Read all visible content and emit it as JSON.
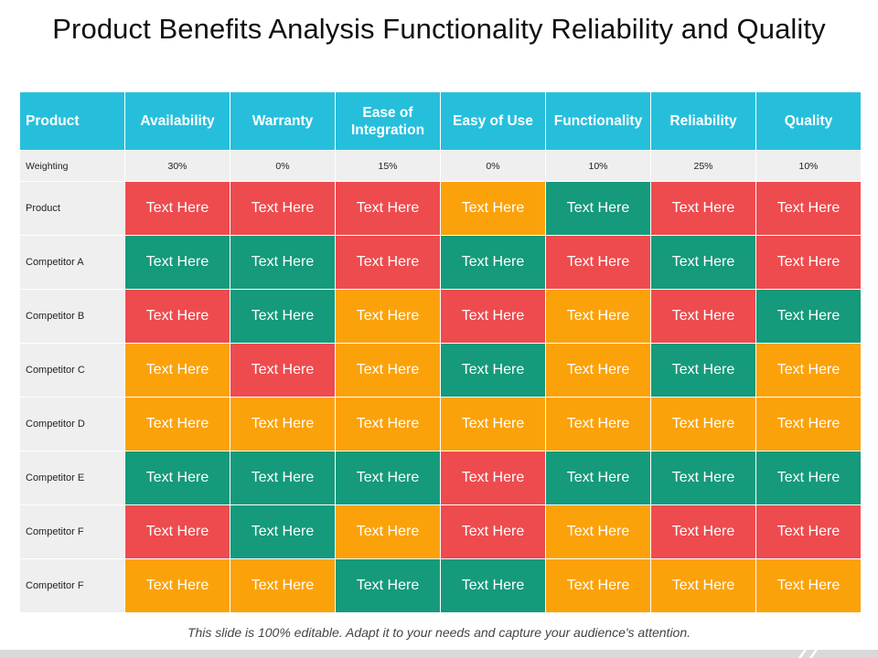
{
  "title": "Product Benefits Analysis Functionality Reliability and Quality",
  "footer": "This slide is 100% editable.  Adapt it to your needs and capture your audience's attention.",
  "table": {
    "headers": [
      "Product",
      "Availability",
      "Warranty",
      "Ease of Integration",
      "Easy of Use",
      "Functionality",
      "Reliability",
      "Quality"
    ],
    "weighting": {
      "label": "Weighting",
      "values": [
        "30%",
        "0%",
        "15%",
        "0%",
        "10%",
        "25%",
        "10%"
      ]
    },
    "colors": {
      "red": "#ee4b4e",
      "green": "#159a7b",
      "orange": "#fba20a",
      "header": "#25bfdc"
    },
    "rows": [
      {
        "label": "Product",
        "cells": [
          {
            "text": "Text Here",
            "color": "red"
          },
          {
            "text": "Text Here",
            "color": "red"
          },
          {
            "text": "Text Here",
            "color": "red"
          },
          {
            "text": "Text Here",
            "color": "orange"
          },
          {
            "text": "Text Here",
            "color": "green"
          },
          {
            "text": "Text Here",
            "color": "red"
          },
          {
            "text": "Text Here",
            "color": "red"
          }
        ]
      },
      {
        "label": "Competitor A",
        "cells": [
          {
            "text": "Text Here",
            "color": "green"
          },
          {
            "text": "Text Here",
            "color": "green"
          },
          {
            "text": "Text Here",
            "color": "red"
          },
          {
            "text": "Text Here",
            "color": "green"
          },
          {
            "text": "Text Here",
            "color": "red"
          },
          {
            "text": "Text Here",
            "color": "green"
          },
          {
            "text": "Text Here",
            "color": "red"
          }
        ]
      },
      {
        "label": "Competitor B",
        "cells": [
          {
            "text": "Text Here",
            "color": "red"
          },
          {
            "text": "Text Here",
            "color": "green"
          },
          {
            "text": "Text Here",
            "color": "orange"
          },
          {
            "text": "Text Here",
            "color": "red"
          },
          {
            "text": "Text Here",
            "color": "orange"
          },
          {
            "text": "Text Here",
            "color": "red"
          },
          {
            "text": "Text Here",
            "color": "green"
          }
        ]
      },
      {
        "label": "Competitor C",
        "cells": [
          {
            "text": "Text Here",
            "color": "orange"
          },
          {
            "text": "Text Here",
            "color": "red"
          },
          {
            "text": "Text Here",
            "color": "orange"
          },
          {
            "text": "Text Here",
            "color": "green"
          },
          {
            "text": "Text Here",
            "color": "orange"
          },
          {
            "text": "Text Here",
            "color": "green"
          },
          {
            "text": "Text Here",
            "color": "orange"
          }
        ]
      },
      {
        "label": "Competitor D",
        "cells": [
          {
            "text": "Text Here",
            "color": "orange"
          },
          {
            "text": "Text Here",
            "color": "orange"
          },
          {
            "text": "Text Here",
            "color": "orange"
          },
          {
            "text": "Text Here",
            "color": "orange"
          },
          {
            "text": "Text Here",
            "color": "orange"
          },
          {
            "text": "Text Here",
            "color": "orange"
          },
          {
            "text": "Text Here",
            "color": "orange"
          }
        ]
      },
      {
        "label": "Competitor E",
        "cells": [
          {
            "text": "Text Here",
            "color": "green"
          },
          {
            "text": "Text Here",
            "color": "green"
          },
          {
            "text": "Text Here",
            "color": "green"
          },
          {
            "text": "Text Here",
            "color": "red"
          },
          {
            "text": "Text Here",
            "color": "green"
          },
          {
            "text": "Text Here",
            "color": "green"
          },
          {
            "text": "Text Here",
            "color": "green"
          }
        ]
      },
      {
        "label": "Competitor F",
        "cells": [
          {
            "text": "Text Here",
            "color": "red"
          },
          {
            "text": "Text Here",
            "color": "green"
          },
          {
            "text": "Text Here",
            "color": "orange"
          },
          {
            "text": "Text Here",
            "color": "red"
          },
          {
            "text": "Text Here",
            "color": "orange"
          },
          {
            "text": "Text Here",
            "color": "red"
          },
          {
            "text": "Text Here",
            "color": "red"
          }
        ]
      },
      {
        "label": "Competitor F",
        "cells": [
          {
            "text": "Text Here",
            "color": "orange"
          },
          {
            "text": "Text Here",
            "color": "orange"
          },
          {
            "text": "Text Here",
            "color": "green"
          },
          {
            "text": "Text Here",
            "color": "green"
          },
          {
            "text": "Text Here",
            "color": "orange"
          },
          {
            "text": "Text Here",
            "color": "orange"
          },
          {
            "text": "Text Here",
            "color": "orange"
          }
        ]
      }
    ]
  }
}
